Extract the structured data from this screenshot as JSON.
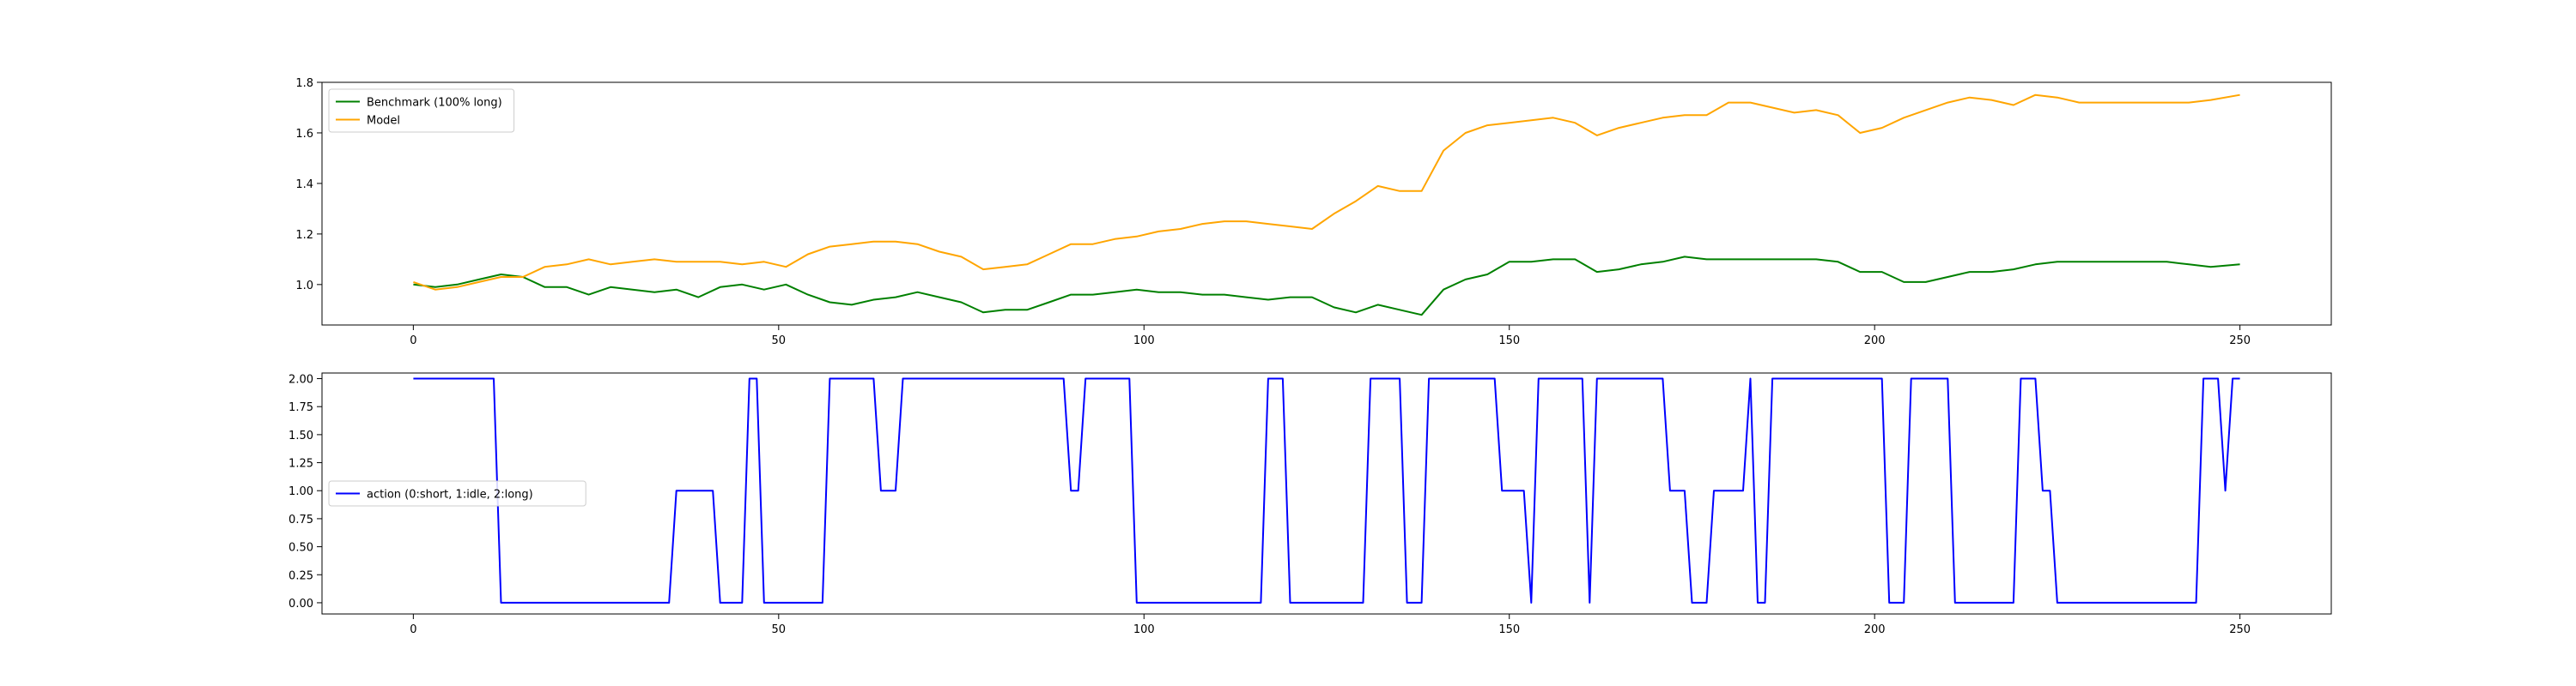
{
  "chart_data": [
    {
      "type": "line",
      "title": "",
      "xlabel": "",
      "ylabel": "",
      "xlim": [
        -12.5,
        262.5
      ],
      "ylim": [
        0.84,
        1.8
      ],
      "xticks": [
        0,
        50,
        100,
        150,
        200,
        250
      ],
      "yticks": [
        1.0,
        1.2,
        1.4,
        1.6,
        1.8
      ],
      "ytick_labels": [
        "1.0",
        "1.2",
        "1.4",
        "1.6",
        "1.8"
      ],
      "grid": false,
      "legend_position": "upper-left",
      "series": [
        {
          "name": "Benchmark (100% long)",
          "color": "#008000",
          "x": [
            0,
            3,
            6,
            9,
            12,
            15,
            18,
            21,
            24,
            27,
            30,
            33,
            36,
            39,
            42,
            45,
            48,
            51,
            54,
            57,
            60,
            63,
            66,
            69,
            72,
            75,
            78,
            81,
            84,
            87,
            90,
            93,
            96,
            99,
            102,
            105,
            108,
            111,
            114,
            117,
            120,
            123,
            126,
            129,
            132,
            135,
            138,
            141,
            144,
            147,
            150,
            153,
            156,
            159,
            162,
            165,
            168,
            171,
            174,
            177,
            180,
            183,
            186,
            189,
            192,
            195,
            198,
            201,
            204,
            207,
            210,
            213,
            216,
            219,
            222,
            225,
            228,
            231,
            234,
            237,
            240,
            243,
            246,
            250
          ],
          "values": [
            1.0,
            0.99,
            1.0,
            1.02,
            1.04,
            1.03,
            0.99,
            0.99,
            0.96,
            0.99,
            0.98,
            0.97,
            0.98,
            0.95,
            0.99,
            1.0,
            0.98,
            1.0,
            0.96,
            0.93,
            0.92,
            0.94,
            0.95,
            0.97,
            0.95,
            0.93,
            0.89,
            0.9,
            0.9,
            0.93,
            0.96,
            0.96,
            0.97,
            0.98,
            0.97,
            0.97,
            0.96,
            0.96,
            0.95,
            0.94,
            0.95,
            0.95,
            0.91,
            0.89,
            0.92,
            0.9,
            0.88,
            0.98,
            1.02,
            1.04,
            1.09,
            1.09,
            1.1,
            1.1,
            1.05,
            1.06,
            1.08,
            1.09,
            1.11,
            1.1,
            1.1,
            1.1,
            1.1,
            1.1,
            1.1,
            1.09,
            1.05,
            1.05,
            1.01,
            1.01,
            1.03,
            1.05,
            1.05,
            1.06,
            1.08,
            1.09,
            1.09,
            1.09,
            1.09,
            1.09,
            1.09,
            1.08,
            1.07,
            1.08
          ]
        },
        {
          "name": "Model",
          "color": "#FFA500",
          "x": [
            0,
            3,
            6,
            9,
            12,
            15,
            18,
            21,
            24,
            27,
            30,
            33,
            36,
            39,
            42,
            45,
            48,
            51,
            54,
            57,
            60,
            63,
            66,
            69,
            72,
            75,
            78,
            81,
            84,
            87,
            90,
            93,
            96,
            99,
            102,
            105,
            108,
            111,
            114,
            117,
            120,
            123,
            126,
            129,
            132,
            135,
            138,
            141,
            144,
            147,
            150,
            153,
            156,
            159,
            162,
            165,
            168,
            171,
            174,
            177,
            180,
            183,
            186,
            189,
            192,
            195,
            198,
            201,
            204,
            207,
            210,
            213,
            216,
            219,
            222,
            225,
            228,
            231,
            234,
            237,
            240,
            243,
            246,
            250
          ],
          "values": [
            1.01,
            0.98,
            0.99,
            1.01,
            1.03,
            1.03,
            1.07,
            1.08,
            1.1,
            1.08,
            1.09,
            1.1,
            1.09,
            1.09,
            1.09,
            1.08,
            1.09,
            1.07,
            1.12,
            1.15,
            1.16,
            1.17,
            1.17,
            1.16,
            1.13,
            1.11,
            1.06,
            1.07,
            1.08,
            1.12,
            1.16,
            1.16,
            1.18,
            1.19,
            1.21,
            1.22,
            1.24,
            1.25,
            1.25,
            1.24,
            1.23,
            1.22,
            1.28,
            1.33,
            1.39,
            1.37,
            1.37,
            1.53,
            1.6,
            1.63,
            1.64,
            1.65,
            1.66,
            1.64,
            1.59,
            1.62,
            1.64,
            1.66,
            1.67,
            1.67,
            1.72,
            1.72,
            1.7,
            1.68,
            1.69,
            1.67,
            1.6,
            1.62,
            1.66,
            1.69,
            1.72,
            1.74,
            1.73,
            1.71,
            1.75,
            1.74,
            1.72,
            1.72,
            1.72,
            1.72,
            1.72,
            1.72,
            1.73,
            1.75
          ]
        }
      ]
    },
    {
      "type": "line",
      "title": "",
      "xlabel": "",
      "ylabel": "",
      "xlim": [
        -12.5,
        262.5
      ],
      "ylim": [
        -0.1,
        2.05
      ],
      "xticks": [
        0,
        50,
        100,
        150,
        200,
        250
      ],
      "yticks": [
        0.0,
        0.25,
        0.5,
        0.75,
        1.0,
        1.25,
        1.5,
        1.75,
        2.0
      ],
      "ytick_labels": [
        "0.00",
        "0.25",
        "0.50",
        "0.75",
        "1.00",
        "1.25",
        "1.50",
        "1.75",
        "2.00"
      ],
      "grid": false,
      "legend_position": "center-left",
      "series": [
        {
          "name": "action (0:short, 1:idle, 2:long)",
          "color": "#0000FF",
          "x": [
            0,
            11,
            12,
            35,
            36,
            41,
            42,
            45,
            46,
            47,
            48,
            56,
            57,
            63,
            64,
            66,
            67,
            89,
            90,
            91,
            92,
            98,
            99,
            116,
            117,
            119,
            120,
            130,
            131,
            135,
            136,
            138,
            139,
            148,
            149,
            152,
            153,
            154,
            160,
            161,
            162,
            171,
            172,
            174,
            175,
            177,
            178,
            182,
            183,
            184,
            185,
            186,
            187,
            201,
            202,
            204,
            205,
            210,
            211,
            219,
            220,
            222,
            223,
            224,
            225,
            244,
            245,
            247,
            248,
            249,
            250
          ],
          "values": [
            2,
            2,
            0,
            0,
            1,
            1,
            0,
            0,
            2,
            2,
            0,
            0,
            2,
            2,
            1,
            1,
            2,
            2,
            1,
            1,
            2,
            2,
            0,
            0,
            2,
            2,
            0,
            0,
            2,
            2,
            0,
            0,
            2,
            2,
            1,
            1,
            0,
            2,
            2,
            0,
            2,
            2,
            1,
            1,
            0,
            0,
            1,
            1,
            2,
            0,
            0,
            2,
            2,
            2,
            0,
            0,
            2,
            2,
            0,
            0,
            2,
            2,
            1,
            1,
            0,
            0,
            2,
            2,
            1,
            2,
            2
          ]
        }
      ]
    }
  ]
}
